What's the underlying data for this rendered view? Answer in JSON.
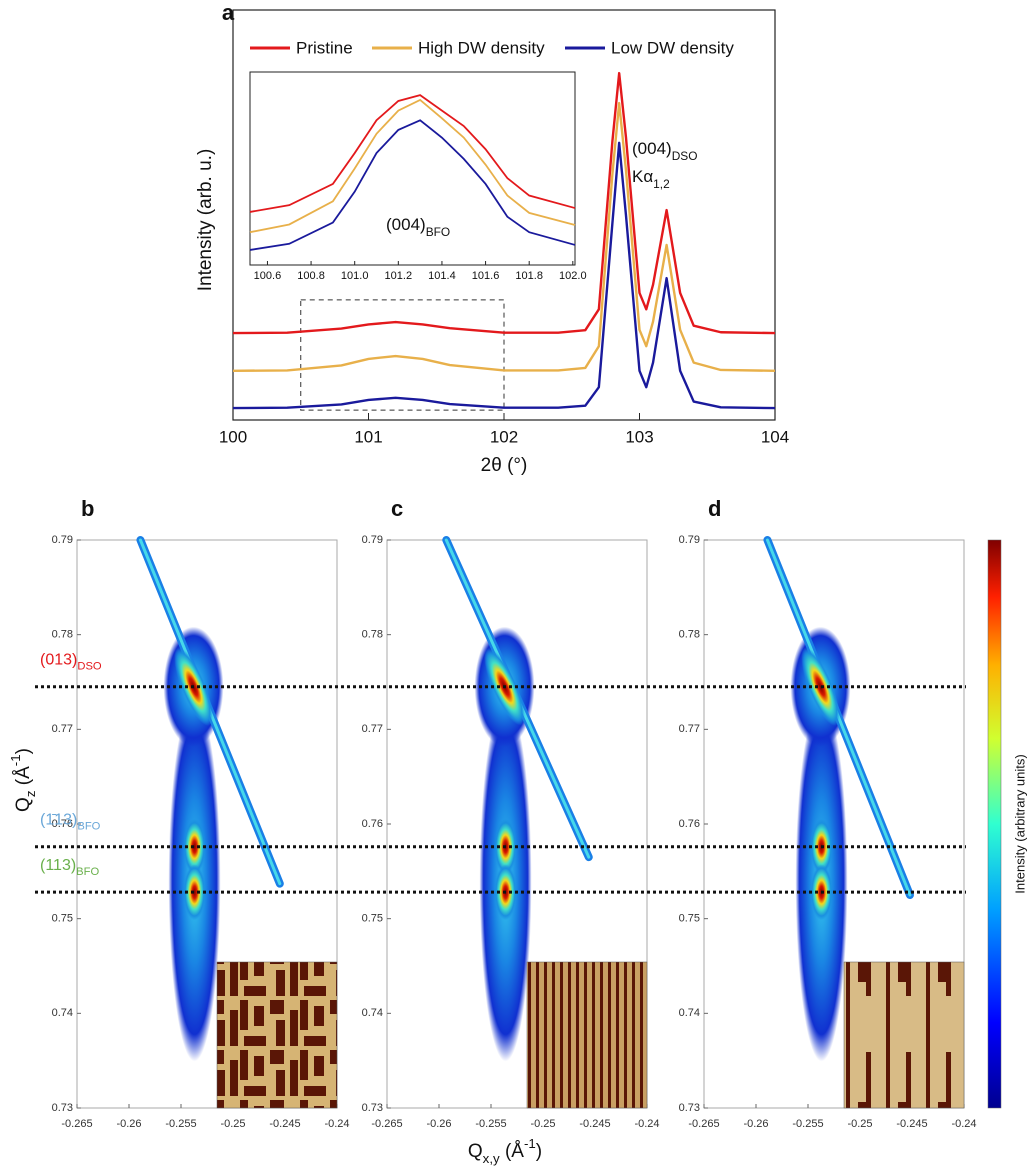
{
  "chart_data": [
    {
      "type": "line",
      "panel": "a",
      "xlabel": "2θ (°)",
      "ylabel": "Intensity (arb. u.)",
      "legend": "top",
      "x": [
        100,
        100.4,
        100.8,
        101.0,
        101.2,
        101.4,
        101.6,
        102.0,
        102.4,
        102.6,
        102.7,
        102.8,
        102.85,
        102.9,
        103.0,
        103.05,
        103.1,
        103.2,
        103.3,
        103.4,
        103.6,
        104
      ],
      "series": [
        {
          "name": "Pristine",
          "color": "#e3191c",
          "values": [
            21.2,
            21.3,
            22.3,
            23.3,
            23.9,
            23.3,
            22.4,
            21.3,
            21.3,
            21.9,
            27,
            68,
            84.6,
            69,
            31,
            27,
            33,
            51.2,
            31,
            23,
            21.4,
            21.2
          ]
        },
        {
          "name": "High DW density",
          "color": "#e8b04a",
          "values": [
            12,
            12.1,
            13.3,
            14.9,
            15.6,
            14.9,
            13.4,
            12.1,
            12.1,
            12.7,
            18,
            60,
            77.3,
            61,
            22,
            18,
            24,
            42.7,
            22,
            14,
            12.2,
            12
          ]
        },
        {
          "name": "Low DW density",
          "color": "#1a1a9c",
          "values": [
            2.9,
            3.0,
            3.8,
            4.9,
            5.4,
            4.9,
            3.9,
            3.0,
            3.0,
            3.5,
            8,
            48,
            67.6,
            50,
            12,
            8,
            14,
            34.6,
            12,
            4.5,
            3.1,
            2.9
          ]
        }
      ],
      "xlim": [
        100,
        104
      ],
      "xticks": [
        100,
        101,
        102,
        103,
        104
      ],
      "ylim": [
        0,
        100
      ],
      "annotation": {
        "line1": [
          {
            "text": "(004)"
          },
          {
            "text": "DSO",
            "style": "sub"
          }
        ],
        "line2": [
          {
            "text": "Kα"
          },
          {
            "text": "1,2",
            "style": "sub"
          }
        ]
      },
      "zoom_box": {
        "xlim": [
          100.5,
          102.0
        ],
        "ylim": [
          2.4,
          29.3
        ]
      },
      "inset": {
        "x": [
          100.52,
          100.7,
          100.9,
          101.0,
          101.1,
          101.2,
          101.3,
          101.4,
          101.5,
          101.6,
          101.7,
          101.8,
          102.01
        ],
        "series": [
          {
            "color": "#e3191c",
            "values": [
              27.5,
              31,
              42,
              58,
              75,
              85,
              88,
              80,
              72,
              60,
              45,
              36,
              29.5
            ]
          },
          {
            "color": "#e8b04a",
            "values": [
              17,
              21,
              33,
              50,
              68,
              80,
              85.5,
              76,
              66,
              52,
              36,
              27,
              20.7
            ]
          },
          {
            "color": "#1a1a9c",
            "values": [
              7.8,
              11,
              22,
              38,
              58,
              70,
              75,
              66,
              55,
              42,
              25,
              17,
              10.4
            ]
          }
        ],
        "xlim": [
          100.52,
          102.01
        ],
        "xticks": [
          100.6,
          100.8,
          {
            "value": 101.0,
            "label": "101.0"
          },
          101.2,
          101.4,
          101.6,
          101.8,
          {
            "value": 102.0,
            "label": "102.0"
          }
        ],
        "ylim": [
          0,
          100
        ],
        "label": [
          {
            "text": "(004)"
          },
          {
            "text": "BFO",
            "style": "sub"
          }
        ]
      }
    },
    {
      "type": "map",
      "panel": "b",
      "xlim": [
        -0.265,
        -0.24
      ],
      "ylim": [
        0.73,
        0.79
      ],
      "xticks": [
        -0.265,
        -0.26,
        -0.255,
        -0.25,
        -0.245,
        -0.24
      ],
      "yticks": [
        0.79,
        0.78,
        0.77,
        0.76,
        0.75,
        0.74,
        0.73
      ],
      "peak_x": [
        -0.2538,
        -0.2537,
        -0.2537
      ],
      "peak_y": [
        0.7745,
        0.7576,
        0.7528
      ],
      "streak_x": [
        -0.2589,
        -0.2455
      ],
      "streak_y": [
        0.79,
        0.7537
      ],
      "afm": "b"
    },
    {
      "type": "map",
      "panel": "c",
      "xlim": [
        -0.265,
        -0.24
      ],
      "ylim": [
        0.73,
        0.79
      ],
      "xticks": [
        -0.265,
        -0.26,
        -0.255,
        -0.25,
        -0.245,
        -0.24
      ],
      "yticks": [
        0.79,
        0.78,
        0.77,
        0.76,
        0.75,
        0.74,
        0.73
      ],
      "peak_x": [
        -0.2537,
        -0.2536,
        -0.2536
      ],
      "peak_y": [
        0.7745,
        0.7576,
        0.7528
      ],
      "streak_x": [
        -0.2593,
        -0.2456
      ],
      "streak_y": [
        0.79,
        0.7565
      ],
      "afm": "c"
    },
    {
      "type": "map",
      "panel": "d",
      "xlim": [
        -0.265,
        -0.24
      ],
      "ylim": [
        0.73,
        0.79
      ],
      "xticks": [
        -0.265,
        -0.26,
        -0.255,
        -0.25,
        -0.245,
        -0.24
      ],
      "yticks": [
        0.79,
        0.78,
        0.77,
        0.76,
        0.75,
        0.74,
        0.73
      ],
      "peak_x": [
        -0.2538,
        -0.2537,
        -0.2537
      ],
      "peak_y": [
        0.7745,
        0.7576,
        0.7528
      ],
      "streak_x": [
        -0.2589,
        -0.2452
      ],
      "streak_y": [
        0.79,
        0.7525
      ],
      "afm": "d"
    }
  ],
  "figure": {
    "y_label": [
      {
        "text": "Q"
      },
      {
        "text": "z",
        "style": "sub"
      },
      {
        "text": " (Å"
      },
      {
        "text": "-1",
        "style": "sup"
      },
      {
        "text": ")"
      }
    ],
    "x_label": [
      {
        "text": "Q"
      },
      {
        "text": "x,y",
        "style": "sub"
      },
      {
        "text": " (Å"
      },
      {
        "text": "-1",
        "style": "sup"
      },
      {
        "text": ")"
      }
    ],
    "colorbar_label": "Intensity (arbitrary units)",
    "reference_lines": [
      {
        "value": 0.7745,
        "color": "#e3191c",
        "label": [
          {
            "text": "(013)"
          },
          {
            "text": "DSO",
            "style": "sub"
          }
        ]
      },
      {
        "value": 0.7576,
        "color": "#6aa7d8",
        "label": [
          {
            "text": "(1̄13)"
          },
          {
            "text": "BFO",
            "style": "sub"
          }
        ]
      },
      {
        "value": 0.7528,
        "color": "#6ab04c",
        "label": [
          {
            "text": "(113)"
          },
          {
            "text": "BFO",
            "style": "sub"
          }
        ]
      }
    ]
  }
}
